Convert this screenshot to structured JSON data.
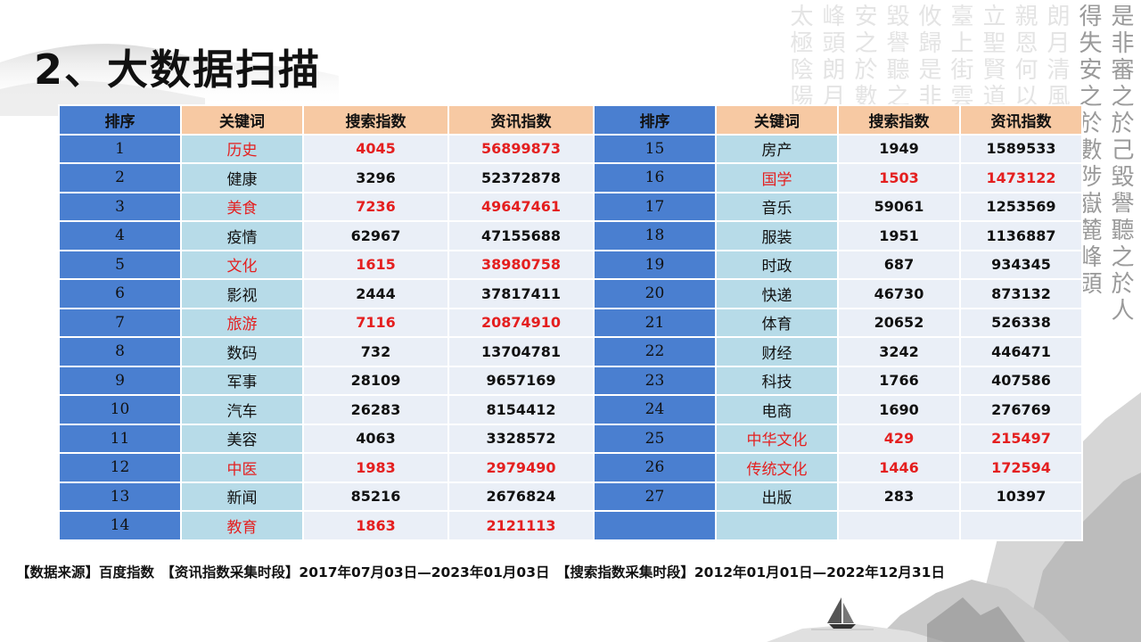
{
  "title": "2、大数据扫描",
  "table": {
    "headers": [
      "排序",
      "关键词",
      "搜索指数",
      "资讯指数"
    ],
    "left_rows": [
      {
        "rank": "1",
        "keyword": "历史",
        "search": "4045",
        "info": "56899873",
        "highlight": true
      },
      {
        "rank": "2",
        "keyword": "健康",
        "search": "3296",
        "info": "52372878",
        "highlight": false
      },
      {
        "rank": "3",
        "keyword": "美食",
        "search": "7236",
        "info": "49647461",
        "highlight": true
      },
      {
        "rank": "4",
        "keyword": "疫情",
        "search": "62967",
        "info": "47155688",
        "highlight": false
      },
      {
        "rank": "5",
        "keyword": "文化",
        "search": "1615",
        "info": "38980758",
        "highlight": true
      },
      {
        "rank": "6",
        "keyword": "影视",
        "search": "2444",
        "info": "37817411",
        "highlight": false
      },
      {
        "rank": "7",
        "keyword": "旅游",
        "search": "7116",
        "info": "20874910",
        "highlight": true
      },
      {
        "rank": "8",
        "keyword": "数码",
        "search": "732",
        "info": "13704781",
        "highlight": false
      },
      {
        "rank": "9",
        "keyword": "军事",
        "search": "28109",
        "info": "9657169",
        "highlight": false
      },
      {
        "rank": "10",
        "keyword": "汽车",
        "search": "26283",
        "info": "8154412",
        "highlight": false
      },
      {
        "rank": "11",
        "keyword": "美容",
        "search": "4063",
        "info": "3328572",
        "highlight": false
      },
      {
        "rank": "12",
        "keyword": "中医",
        "search": "1983",
        "info": "2979490",
        "highlight": true
      },
      {
        "rank": "13",
        "keyword": "新闻",
        "search": "85216",
        "info": "2676824",
        "highlight": false
      },
      {
        "rank": "14",
        "keyword": "教育",
        "search": "1863",
        "info": "2121113",
        "highlight": true
      }
    ],
    "right_rows": [
      {
        "rank": "15",
        "keyword": "房产",
        "search": "1949",
        "info": "1589533",
        "highlight": false
      },
      {
        "rank": "16",
        "keyword": "国学",
        "search": "1503",
        "info": "1473122",
        "highlight": true
      },
      {
        "rank": "17",
        "keyword": "音乐",
        "search": "59061",
        "info": "1253569",
        "highlight": false
      },
      {
        "rank": "18",
        "keyword": "服装",
        "search": "1951",
        "info": "1136887",
        "highlight": false
      },
      {
        "rank": "19",
        "keyword": "时政",
        "search": "687",
        "info": "934345",
        "highlight": false
      },
      {
        "rank": "20",
        "keyword": "快递",
        "search": "46730",
        "info": "873132",
        "highlight": false
      },
      {
        "rank": "21",
        "keyword": "体育",
        "search": "20652",
        "info": "526338",
        "highlight": false
      },
      {
        "rank": "22",
        "keyword": "财经",
        "search": "3242",
        "info": "446471",
        "highlight": false
      },
      {
        "rank": "23",
        "keyword": "科技",
        "search": "1766",
        "info": "407586",
        "highlight": false
      },
      {
        "rank": "24",
        "keyword": "电商",
        "search": "1690",
        "info": "276769",
        "highlight": false
      },
      {
        "rank": "25",
        "keyword": "中华文化",
        "search": "429",
        "info": "215497",
        "highlight": true
      },
      {
        "rank": "26",
        "keyword": "传统文化",
        "search": "1446",
        "info": "172594",
        "highlight": true
      },
      {
        "rank": "27",
        "keyword": "出版",
        "search": "283",
        "info": "10397",
        "highlight": false
      },
      {
        "rank": "",
        "keyword": "",
        "search": "",
        "info": "",
        "highlight": false
      }
    ]
  },
  "footer": {
    "source": "【数据来源】百度指数",
    "info_period": "【资讯指数采集时段】2017年07月03日—2023年01月03日",
    "search_period": "【搜索指数采集时段】2012年01月01日—2022年12月31日"
  },
  "calligraphy_columns": [
    {
      "text": "是非審之於己毀譽聽之於人",
      "color": "#9a9a9a"
    },
    {
      "text": "得失安之於數陟嶽麓峰頭",
      "color": "#9a9a9a"
    },
    {
      "text": "朗月清風",
      "color": "#e4e4e4"
    },
    {
      "text": "親恩何以",
      "color": "#e4e4e4"
    },
    {
      "text": "立聖賢道",
      "color": "#e4e4e4"
    },
    {
      "text": "臺上街雲",
      "color": "#e4e4e4"
    },
    {
      "text": "攸歸是非",
      "color": "#e4e4e4"
    },
    {
      "text": "毀譽聽之",
      "color": "#e4e4e4"
    },
    {
      "text": "安之於數",
      "color": "#e4e4e4"
    },
    {
      "text": "峰頭朗月",
      "color": "#e4e4e4"
    },
    {
      "text": "太極陰陽",
      "color": "#e4e4e4"
    }
  ],
  "colors": {
    "rank_header": "#4a7fd0",
    "header_peach": "#f7c9a3",
    "keyword_cell": "#b7dbe8",
    "value_cell": "#eaeff7",
    "highlight_text": "#e41f1f"
  }
}
